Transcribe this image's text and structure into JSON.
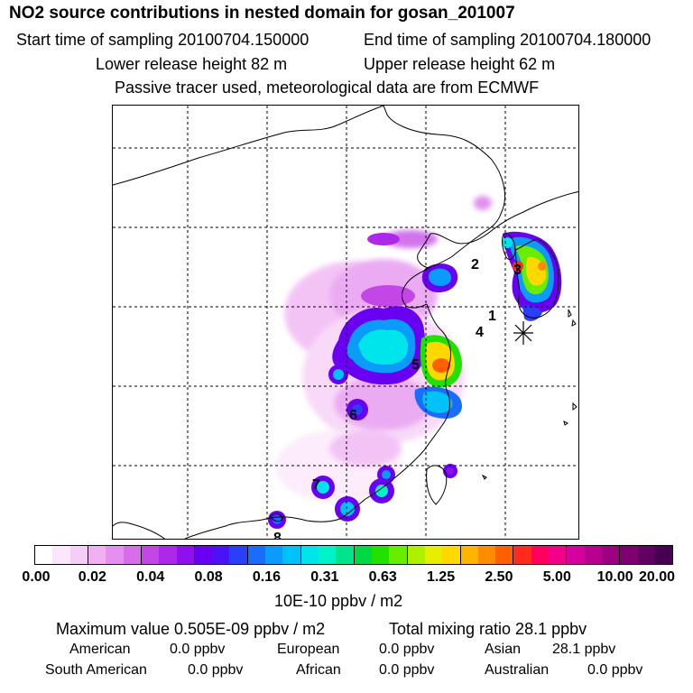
{
  "header": {
    "title": "NO2 source contributions in nested domain for gosan_201007",
    "start_label": "Start time of sampling 20100704.150000",
    "end_label": "End time of sampling 20100704.180000",
    "lower_label": "Lower release height   82 m",
    "upper_label": "Upper release height   62 m",
    "tracer_note": "Passive tracer used, meteorological data are from ECMWF"
  },
  "map": {
    "site_labels": [
      "1",
      "2",
      "3",
      "4",
      "5",
      "6",
      "7",
      "8"
    ],
    "receptor_marker": "receptor-star-icon"
  },
  "colorbar": {
    "ticks": [
      "0.00",
      "0.02",
      "0.04",
      "0.08",
      "0.16",
      "0.31",
      "0.63",
      "1.25",
      "2.50",
      "5.00",
      "10.00",
      "20.00"
    ],
    "unit_label": "10E-10 ppbv / m2",
    "colors": [
      "#ffffff",
      "#fbe6fb",
      "#f6cdf6",
      "#f0b0f3",
      "#e590f0",
      "#d66de9",
      "#c247e6",
      "#ad28e8",
      "#9010ec",
      "#6a00f2",
      "#4a12f4",
      "#2b3ef8",
      "#1a6cfb",
      "#0a9bfb",
      "#00c2f8",
      "#00e4ec",
      "#00f2c9",
      "#00e58c",
      "#00d845",
      "#22e000",
      "#68ec00",
      "#aef000",
      "#e8ee00",
      "#ffd800",
      "#ffb400",
      "#ff8c00",
      "#ff5f00",
      "#ff2c1e",
      "#ff0060",
      "#f2008c",
      "#d5009e",
      "#b8008f",
      "#9c0080",
      "#7f0071",
      "#620062",
      "#460051"
    ]
  },
  "footer": {
    "max_label": "Maximum value  0.505E-09 ppbv / m2",
    "total_label": "Total mixing ratio        28.1 ppbv",
    "regions": [
      {
        "name": "American",
        "value": "0.0 ppbv"
      },
      {
        "name": "European",
        "value": "0.0 ppbv"
      },
      {
        "name": "Asian",
        "value": "28.1 ppbv"
      },
      {
        "name": "South American",
        "value": "0.0 ppbv"
      },
      {
        "name": "African",
        "value": "0.0 ppbv"
      },
      {
        "name": "Australian",
        "value": "0.0 ppbv"
      }
    ]
  }
}
